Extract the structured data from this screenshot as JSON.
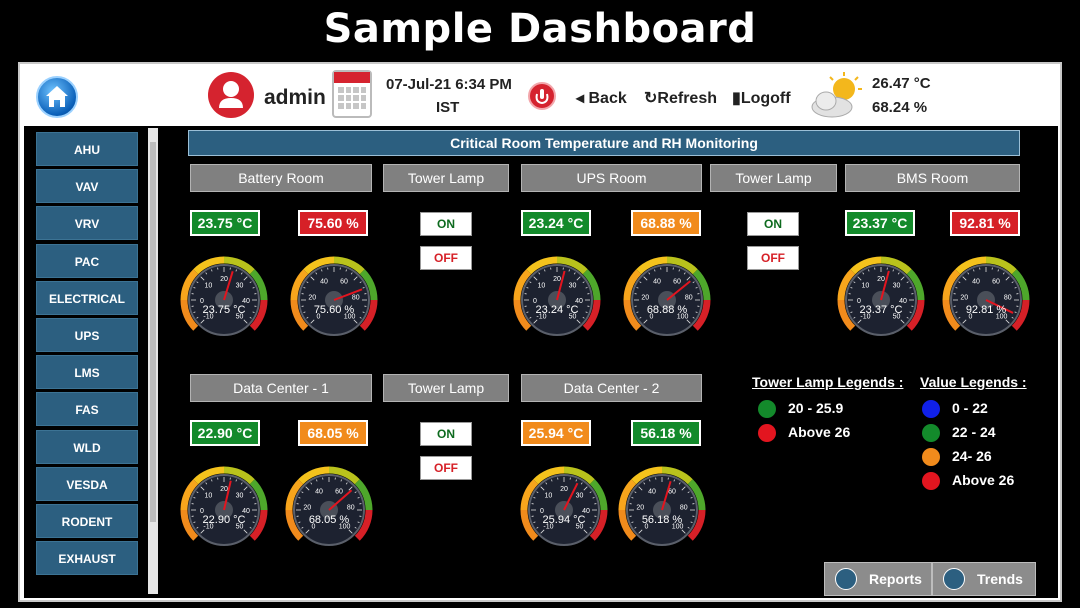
{
  "banner_title": "Sample Dashboard",
  "header": {
    "user_name": "admin",
    "datetime_line1": "07-Jul-21 6:34 PM",
    "datetime_line2": "IST",
    "back_label": "Back",
    "refresh_label": "Refresh",
    "logoff_label": "Logoff",
    "outdoor_temp": "26.47 °C",
    "outdoor_rh": "68.24 %"
  },
  "sidebar": {
    "items": [
      "AHU",
      "VAV",
      "VRV",
      "PAC",
      "ELECTRICAL",
      "UPS",
      "LMS",
      "FAS",
      "WLD",
      "VESDA",
      "RODENT",
      "EXHAUST"
    ]
  },
  "section_title": "Critical Room Temperature and RH Monitoring",
  "rooms": [
    {
      "name": "Battery Room",
      "temp": "23.75 °C",
      "temp_status": "green",
      "rh": "75.60 %",
      "rh_status": "red",
      "temp_gauge": {
        "value": 23.75,
        "label": "23.75 °C",
        "ticks": [
          "-10",
          "0",
          "10",
          "20",
          "30",
          "40",
          "50"
        ]
      },
      "rh_gauge": {
        "value": 75.6,
        "label": "75.60 %",
        "ticks": [
          "0",
          "20",
          "40",
          "60",
          "80",
          "100"
        ]
      }
    },
    {
      "name": "UPS Room",
      "temp": "23.24 °C",
      "temp_status": "green",
      "rh": "68.88 %",
      "rh_status": "orange",
      "temp_gauge": {
        "value": 23.24,
        "label": "23.24 °C",
        "ticks": [
          "-10",
          "0",
          "10",
          "20",
          "30",
          "40",
          "50"
        ]
      },
      "rh_gauge": {
        "value": 68.88,
        "label": "68.88 %",
        "ticks": [
          "0",
          "20",
          "40",
          "60",
          "80",
          "100"
        ]
      }
    },
    {
      "name": "BMS Room",
      "temp": "23.37 °C",
      "temp_status": "green",
      "rh": "92.81 %",
      "rh_status": "red",
      "temp_gauge": {
        "value": 23.37,
        "label": "23.37 °C",
        "ticks": [
          "-10",
          "0",
          "10",
          "20",
          "30",
          "40",
          "50"
        ]
      },
      "rh_gauge": {
        "value": 92.81,
        "label": "92.81 %",
        "ticks": [
          "0",
          "20",
          "40",
          "60",
          "80",
          "100"
        ]
      }
    },
    {
      "name": "Data Center - 1",
      "temp": "22.90 °C",
      "temp_status": "green",
      "rh": "68.05 %",
      "rh_status": "orange",
      "temp_gauge": {
        "value": 22.9,
        "label": "22.90 °C",
        "ticks": [
          "-10",
          "0",
          "10",
          "20",
          "30",
          "40",
          "50"
        ]
      },
      "rh_gauge": {
        "value": 68.05,
        "label": "68.05 %",
        "ticks": [
          "0",
          "20",
          "40",
          "60",
          "80",
          "100"
        ]
      }
    },
    {
      "name": "Data Center - 2",
      "temp": "25.94 °C",
      "temp_status": "orange",
      "rh": "56.18 %",
      "rh_status": "green",
      "temp_gauge": {
        "value": 25.94,
        "label": "25.94 °C",
        "ticks": [
          "-10",
          "0",
          "10",
          "20",
          "30",
          "40",
          "50"
        ]
      },
      "rh_gauge": {
        "value": 56.18,
        "label": "56.18 %",
        "ticks": [
          "0",
          "20",
          "40",
          "60",
          "80",
          "100"
        ]
      }
    }
  ],
  "tower_lamp": {
    "label": "Tower Lamp",
    "on_label": "ON",
    "off_label": "OFF"
  },
  "legends": {
    "tower_title": "Tower Lamp Legends :",
    "tower_items": [
      {
        "text": "20 - 25.9",
        "color": "#138a2b"
      },
      {
        "text": "Above 26",
        "color": "#e3151f"
      }
    ],
    "value_title": "Value Legends :",
    "value_items": [
      {
        "text": "0 - 22",
        "color": "#1020e8"
      },
      {
        "text": "22 - 24",
        "color": "#138a2b"
      },
      {
        "text": "24- 26",
        "color": "#f18b1c"
      },
      {
        "text": "Above 26",
        "color": "#e3151f"
      }
    ]
  },
  "footer": {
    "reports_label": "Reports",
    "trends_label": "Trends"
  },
  "icons": {
    "home": "home-icon",
    "user": "user-icon",
    "calendar": "calendar-icon",
    "power": "power-icon",
    "weather": "partly-cloudy-icon"
  }
}
